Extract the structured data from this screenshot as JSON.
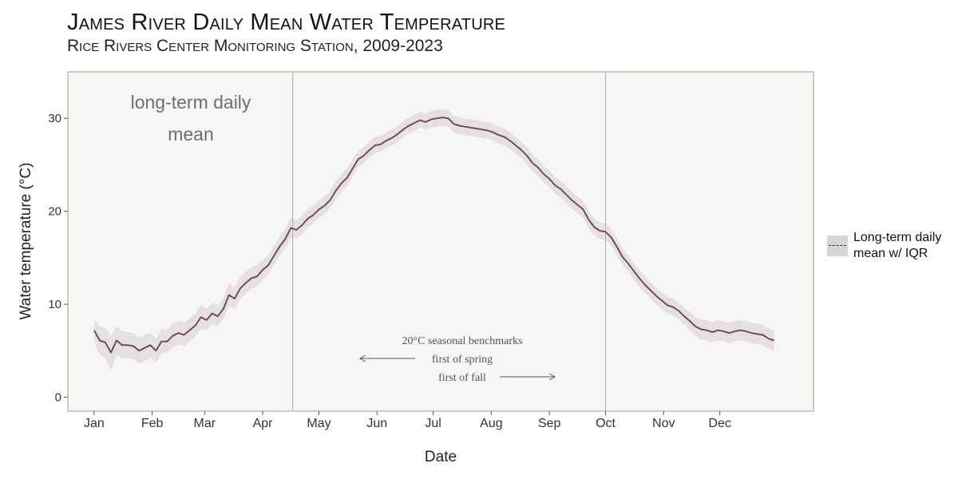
{
  "chart_data": {
    "type": "line",
    "title": "James River Daily Mean Water Temperature",
    "subtitle": "Rice Rivers Center Monitoring Station, 2009-2023",
    "xlabel": "Date",
    "ylabel": "Water temperature (°C)",
    "x_ticks": [
      "Jan",
      "Feb",
      "Mar",
      "Apr",
      "May",
      "Jun",
      "Jul",
      "Aug",
      "Sep",
      "Oct",
      "Nov",
      "Dec"
    ],
    "y_ticks": [
      0,
      10,
      20,
      30
    ],
    "ylim": [
      -1.5,
      35
    ],
    "xlim_day_of_year": [
      -13,
      385
    ],
    "grid": false,
    "legend_position": "right",
    "legend": [
      {
        "label": "Long-term daily mean w/ IQR"
      }
    ],
    "panel_annotation": "long-term daily mean",
    "benchmarks": {
      "title": "20°C seasonal benchmarks",
      "spring_label": "first of spring",
      "fall_label": "first of fall",
      "spring_day_of_year": 107,
      "fall_day_of_year": 274
    },
    "series": [
      {
        "name": "Long-term daily mean",
        "x_day_of_year": [
          1,
          4,
          7,
          10,
          13,
          16,
          19,
          22,
          25,
          28,
          31,
          34,
          37,
          40,
          43,
          46,
          49,
          52,
          55,
          58,
          61,
          64,
          67,
          70,
          73,
          76,
          79,
          82,
          85,
          88,
          91,
          94,
          97,
          100,
          103,
          106,
          109,
          112,
          115,
          118,
          121,
          124,
          127,
          130,
          133,
          136,
          139,
          142,
          145,
          148,
          151,
          154,
          157,
          160,
          163,
          166,
          169,
          172,
          175,
          178,
          181,
          184,
          187,
          190,
          193,
          196,
          199,
          202,
          205,
          208,
          211,
          214,
          217,
          220,
          223,
          226,
          229,
          232,
          235,
          238,
          241,
          244,
          247,
          250,
          253,
          256,
          259,
          262,
          265,
          268,
          271,
          274,
          277,
          280,
          283,
          286,
          289,
          292,
          295,
          298,
          301,
          304,
          307,
          310,
          313,
          316,
          319,
          322,
          325,
          328,
          331,
          334,
          337,
          340,
          343,
          346,
          349,
          352,
          355,
          358,
          361,
          364
        ],
        "mean": [
          7.2,
          6.1,
          5.9,
          4.8,
          6.1,
          5.6,
          5.6,
          5.5,
          5.0,
          5.3,
          5.6,
          5.0,
          6.0,
          6.0,
          6.6,
          6.9,
          6.7,
          7.2,
          7.7,
          8.6,
          8.3,
          9.0,
          8.7,
          9.5,
          11.0,
          10.6,
          11.7,
          12.3,
          12.8,
          13.0,
          13.7,
          14.2,
          15.2,
          16.2,
          17.0,
          18.2,
          18.0,
          18.5,
          19.2,
          19.6,
          20.2,
          20.6,
          21.2,
          22.2,
          23.0,
          23.6,
          24.6,
          25.6,
          26.0,
          26.6,
          27.1,
          27.2,
          27.6,
          27.9,
          28.3,
          28.8,
          29.2,
          29.5,
          29.8,
          29.6,
          29.9,
          30.0,
          30.1,
          30.0,
          29.4,
          29.2,
          29.1,
          29.0,
          28.9,
          28.8,
          28.7,
          28.5,
          28.2,
          28.0,
          27.6,
          27.1,
          26.6,
          26.0,
          25.2,
          24.7,
          24.0,
          23.5,
          22.8,
          22.4,
          21.8,
          21.2,
          20.7,
          20.2,
          19.1,
          18.3,
          17.9,
          17.8,
          17.2,
          16.2,
          15.1,
          14.4,
          13.6,
          12.8,
          12.1,
          11.5,
          10.9,
          10.4,
          9.9,
          9.7,
          9.3,
          8.7,
          8.2,
          7.6,
          7.3,
          7.2,
          7.0,
          7.2,
          7.1,
          6.9,
          7.1,
          7.2,
          7.1,
          6.9,
          6.8,
          6.7,
          6.3,
          6.1
        ],
        "q1": [
          6.0,
          4.6,
          4.2,
          2.9,
          4.5,
          4.2,
          4.2,
          4.1,
          3.6,
          3.9,
          4.3,
          3.7,
          4.7,
          4.8,
          5.4,
          5.7,
          5.5,
          6.0,
          6.5,
          7.4,
          7.2,
          7.9,
          7.6,
          8.4,
          9.8,
          9.5,
          10.5,
          11.2,
          11.7,
          11.9,
          12.6,
          13.2,
          14.2,
          15.2,
          16.0,
          17.2,
          17.1,
          17.6,
          18.3,
          18.7,
          19.3,
          19.7,
          20.3,
          21.3,
          22.1,
          22.7,
          23.7,
          24.8,
          25.2,
          25.8,
          26.3,
          26.4,
          26.8,
          27.1,
          27.5,
          28.0,
          28.4,
          28.7,
          29.0,
          28.8,
          29.0,
          29.1,
          29.2,
          29.1,
          28.5,
          28.3,
          28.2,
          28.1,
          28.0,
          27.9,
          27.8,
          27.6,
          27.3,
          27.1,
          26.7,
          26.2,
          25.7,
          25.1,
          24.3,
          23.8,
          23.1,
          22.6,
          21.9,
          21.5,
          20.9,
          20.3,
          19.8,
          19.3,
          18.2,
          17.4,
          17.0,
          16.9,
          16.3,
          15.3,
          14.2,
          13.5,
          12.7,
          11.9,
          11.2,
          10.6,
          10.0,
          9.5,
          9.0,
          8.8,
          8.4,
          7.8,
          7.2,
          6.6,
          6.2,
          6.1,
          5.9,
          6.1,
          6.0,
          5.8,
          6.0,
          6.1,
          6.0,
          5.8,
          5.7,
          5.6,
          5.2,
          5.0
        ],
        "q3": [
          8.4,
          7.6,
          7.5,
          6.6,
          7.7,
          7.1,
          7.0,
          6.9,
          6.4,
          6.7,
          6.9,
          6.3,
          7.3,
          7.3,
          7.9,
          8.2,
          8.0,
          8.5,
          9.0,
          9.9,
          9.5,
          10.2,
          9.9,
          10.7,
          12.2,
          11.8,
          12.9,
          13.5,
          14.0,
          14.2,
          14.8,
          15.3,
          16.3,
          17.3,
          18.1,
          19.3,
          19.0,
          19.5,
          20.2,
          20.6,
          21.2,
          21.6,
          22.2,
          23.2,
          24.0,
          24.6,
          25.6,
          26.5,
          26.9,
          27.5,
          28.0,
          28.1,
          28.5,
          28.8,
          29.2,
          29.7,
          30.1,
          30.4,
          30.7,
          30.5,
          30.8,
          30.9,
          31.0,
          30.9,
          30.3,
          30.1,
          30.0,
          29.9,
          29.8,
          29.7,
          29.6,
          29.4,
          29.1,
          28.9,
          28.5,
          28.0,
          27.5,
          26.9,
          26.1,
          25.6,
          24.9,
          24.4,
          23.7,
          23.3,
          22.7,
          22.1,
          21.6,
          21.1,
          20.0,
          19.2,
          18.8,
          18.7,
          18.1,
          17.1,
          16.0,
          15.3,
          14.5,
          13.7,
          13.0,
          12.4,
          11.8,
          11.3,
          10.8,
          10.6,
          10.2,
          9.6,
          9.2,
          8.6,
          8.4,
          8.3,
          8.1,
          8.3,
          8.2,
          8.0,
          8.2,
          8.3,
          8.2,
          8.0,
          7.9,
          7.8,
          7.4,
          7.2
        ]
      }
    ]
  },
  "legend_label": "Long-term daily mean w/ IQR",
  "colors": {
    "line": "#6e4f58",
    "ribbon": "#e6e1de",
    "panel": "#f7f6f3",
    "panel_border": "#9e9e9e",
    "vline": "#b8b8b8",
    "annotation": "#6e6e6e"
  }
}
